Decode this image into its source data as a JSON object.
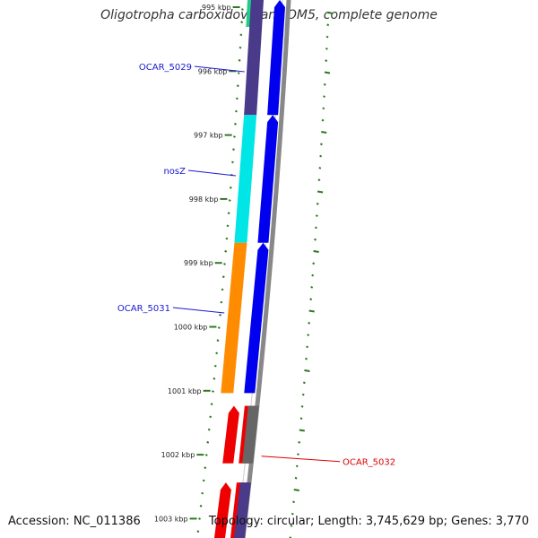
{
  "title": "Oligotropha carboxidovorans OM5, complete genome",
  "accession_text": "Accession: NC_011386",
  "summary_text": "Topology: circular; Length: 3,745,629 bp; Genes: 3,770",
  "colors": {
    "backbone": "#888888",
    "forward_cds": "#0000ee",
    "ticks": "#2d7a1f",
    "label_blue": "#1a1ad0",
    "label_red": "#dd0000"
  },
  "ticks": [
    {
      "label": "995 kbp",
      "kbp": 995
    },
    {
      "label": "996 kbp",
      "kbp": 996
    },
    {
      "label": "997 kbp",
      "kbp": 997
    },
    {
      "label": "998 kbp",
      "kbp": 998
    },
    {
      "label": "999 kbp",
      "kbp": 999
    },
    {
      "label": "1000 kbp",
      "kbp": 1000
    },
    {
      "label": "1001 kbp",
      "kbp": 1001
    },
    {
      "label": "1002 kbp",
      "kbp": 1002
    },
    {
      "label": "1003 kbp",
      "kbp": 1003
    }
  ],
  "genes": [
    {
      "name": "OCAR_5029",
      "start_kbp": 994.7,
      "end_kbp": 996.7,
      "cog_color": "#4a3a8a",
      "label_color": "#1a1ad0",
      "strand": "+"
    },
    {
      "name": "nosZ",
      "start_kbp": 996.7,
      "end_kbp": 998.7,
      "cog_color": "#00e5e5",
      "label_color": "#1a1ad0",
      "strand": "+"
    },
    {
      "name": "OCAR_5031",
      "start_kbp": 998.7,
      "end_kbp": 1001.05,
      "cog_color": "#ff8c00",
      "label_color": "#1a1ad0",
      "strand": "+"
    },
    {
      "name": "OCAR_5032",
      "start_kbp": 1001.25,
      "end_kbp": 1002.15,
      "cog_color": "#ee0000",
      "label_color": "#dd0000",
      "strand": "+"
    },
    {
      "name": "",
      "start_kbp": 1002.45,
      "end_kbp": 1003.5,
      "cog_color": "#ee0000",
      "label_color": "#dd0000",
      "strand": "+"
    }
  ],
  "top_segment_color": "#22cc88"
}
